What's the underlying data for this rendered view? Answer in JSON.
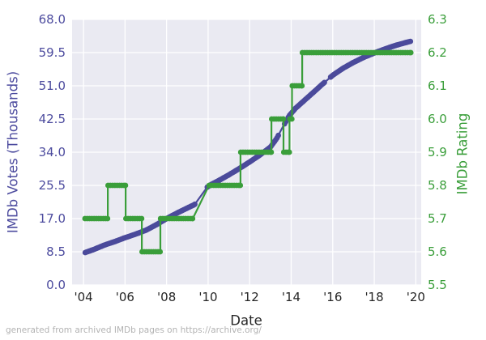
{
  "figure": {
    "caption": "generated from archived IMDb pages on https://archive.org/"
  },
  "chart_data": {
    "type": "line",
    "title": "",
    "xlabel": "Date",
    "ylabel_left": "IMDb Votes (Thousands)",
    "ylabel_right": "IMDb Rating",
    "grid": true,
    "legend": "none",
    "x_range": [
      2003.45,
      2020.26
    ],
    "y_left_range": [
      0,
      68
    ],
    "y_right_range": [
      5.5,
      6.3
    ],
    "x_ticks": [
      {
        "year": 2004,
        "label": "'04"
      },
      {
        "year": 2006,
        "label": "'06"
      },
      {
        "year": 2008,
        "label": "'08"
      },
      {
        "year": 2010,
        "label": "'10"
      },
      {
        "year": 2012,
        "label": "'12"
      },
      {
        "year": 2014,
        "label": "'14"
      },
      {
        "year": 2016,
        "label": "'16"
      },
      {
        "year": 2018,
        "label": "'18"
      },
      {
        "year": 2020,
        "label": "'20"
      }
    ],
    "y_left_ticks": [
      {
        "value": 0.0,
        "label": "0.0"
      },
      {
        "value": 8.5,
        "label": "8.5"
      },
      {
        "value": 17.0,
        "label": "17.0"
      },
      {
        "value": 25.5,
        "label": "25.5"
      },
      {
        "value": 34.0,
        "label": "34.0"
      },
      {
        "value": 42.5,
        "label": "42.5"
      },
      {
        "value": 51.0,
        "label": "51.0"
      },
      {
        "value": 59.5,
        "label": "59.5"
      },
      {
        "value": 68.0,
        "label": "68.0"
      }
    ],
    "y_right_ticks": [
      {
        "value": 5.5,
        "label": "5.5"
      },
      {
        "value": 5.6,
        "label": "5.6"
      },
      {
        "value": 5.7,
        "label": "5.7"
      },
      {
        "value": 5.8,
        "label": "5.8"
      },
      {
        "value": 5.9,
        "label": "5.9"
      },
      {
        "value": 6.0,
        "label": "6.0"
      },
      {
        "value": 6.1,
        "label": "6.1"
      },
      {
        "value": 6.2,
        "label": "6.2"
      },
      {
        "value": 6.3,
        "label": "6.3"
      }
    ],
    "series": [
      {
        "name": "IMDb Votes (Thousands)",
        "axis": "left",
        "style": "dotted-line",
        "color": "#4b4a9b",
        "points": [
          [
            2004.08,
            8.3
          ],
          [
            2004.5,
            9.1
          ],
          [
            2005.0,
            10.2
          ],
          [
            2005.5,
            11.1
          ],
          [
            2006.0,
            12.1
          ],
          [
            2006.5,
            13.0
          ],
          [
            2007.0,
            14.0
          ],
          [
            2007.5,
            15.4
          ],
          [
            2008.0,
            17.0
          ],
          [
            2008.5,
            18.4
          ],
          [
            2009.0,
            19.7
          ],
          [
            2009.35,
            20.6
          ],
          [
            2009.95,
            25.0
          ],
          [
            2010.1,
            25.6
          ],
          [
            2010.5,
            26.7
          ],
          [
            2011.0,
            28.2
          ],
          [
            2011.5,
            29.8
          ],
          [
            2012.0,
            31.5
          ],
          [
            2012.5,
            33.3
          ],
          [
            2013.0,
            35.3
          ],
          [
            2013.3,
            37.5
          ],
          [
            2013.6,
            40.5
          ],
          [
            2013.9,
            43.3
          ],
          [
            2014.2,
            45.2
          ],
          [
            2014.6,
            47.1
          ],
          [
            2015.0,
            49.0
          ],
          [
            2015.5,
            51.4
          ],
          [
            2016.0,
            53.7
          ],
          [
            2016.5,
            55.5
          ],
          [
            2017.0,
            57.0
          ],
          [
            2017.5,
            58.3
          ],
          [
            2018.0,
            59.4
          ],
          [
            2018.5,
            60.4
          ],
          [
            2019.0,
            61.3
          ],
          [
            2019.4,
            61.9
          ],
          [
            2019.75,
            62.4
          ]
        ],
        "marker_gaps": [
          [
            2009.36,
            2009.94
          ],
          [
            2013.38,
            2013.62
          ],
          [
            2015.62,
            2015.88
          ]
        ]
      },
      {
        "name": "IMDb Rating",
        "axis": "right",
        "style": "step",
        "color": "#3a9e3a",
        "segments": [
          [
            2004.06,
            2005.17,
            5.7
          ],
          [
            2005.17,
            2006.03,
            5.8
          ],
          [
            2006.03,
            2006.81,
            5.7
          ],
          [
            2006.81,
            2007.7,
            5.6
          ],
          [
            2007.7,
            2009.26,
            5.7
          ],
          [
            2010.04,
            2011.56,
            5.8
          ],
          [
            2011.56,
            2013.05,
            5.9
          ],
          [
            2013.05,
            2013.63,
            6.0
          ],
          [
            2013.63,
            2013.92,
            5.9
          ],
          [
            2013.92,
            2014.04,
            6.0
          ],
          [
            2014.04,
            2014.53,
            6.1
          ],
          [
            2014.53,
            2019.77,
            6.2
          ]
        ]
      }
    ],
    "colors": {
      "plot_bg": "#eaeaf2",
      "grid": "#ffffff",
      "votes": "#4b4a9b",
      "rating": "#3a9e3a",
      "x_tick_text": "#262626",
      "caption_text": "#b3b3b3"
    }
  }
}
